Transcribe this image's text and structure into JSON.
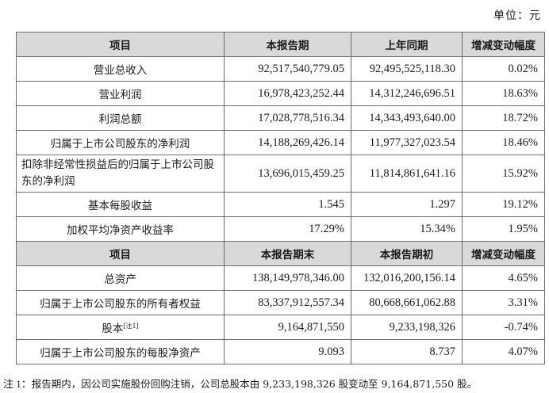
{
  "unit_label": "单位：元",
  "section1": {
    "headers": [
      "项目",
      "本报告期",
      "上年同期",
      "增减变动幅度"
    ],
    "rows": [
      {
        "item": "营业总收入",
        "current": "92,517,540,779.05",
        "prior": "92,495,525,118.30",
        "change": "0.02%"
      },
      {
        "item": "营业利润",
        "current": "16,978,423,252.44",
        "prior": "14,312,246,696.51",
        "change": "18.63%"
      },
      {
        "item": "利润总额",
        "current": "17,028,778,516.34",
        "prior": "14,343,493,640.00",
        "change": "18.72%"
      },
      {
        "item": "归属于上市公司股东的净利润",
        "current": "14,188,269,426.14",
        "prior": "11,977,327,023.54",
        "change": "18.46%"
      },
      {
        "item": "扣除非经常性损益后的归属于上市公司股东的净利润",
        "current": "13,696,015,459.25",
        "prior": "11,814,861,641.16",
        "change": "15.92%"
      },
      {
        "item": "基本每股收益",
        "current": "1.545",
        "prior": "1.297",
        "change": "19.12%"
      },
      {
        "item": "加权平均净资产收益率",
        "current": "17.29%",
        "prior": "15.34%",
        "change": "1.95%"
      }
    ]
  },
  "section2": {
    "headers": [
      "项目",
      "本报告期末",
      "本报告期初",
      "增减变动幅度"
    ],
    "rows": [
      {
        "item": "总资产",
        "current": "138,149,978,346.00",
        "prior": "132,016,200,156.14",
        "change": "4.65%"
      },
      {
        "item": "归属于上市公司股东的所有者权益",
        "current": "83,337,912,557.34",
        "prior": "80,668,661,062.88",
        "change": "3.31%"
      },
      {
        "item": "股本",
        "note": "[注1]",
        "current": "9,164,871,550",
        "prior": "9,233,198,326",
        "change": "-0.74%"
      },
      {
        "item": "归属于上市公司股东的每股净资产",
        "current": "9.093",
        "prior": "8.737",
        "change": "4.07%"
      }
    ]
  },
  "footnote": {
    "label": "注 1：",
    "text": "报告期内，因公司实施股份回购注销，公司总股本由 9,233,198,326 股变动至 9,164,871,550 股。"
  }
}
